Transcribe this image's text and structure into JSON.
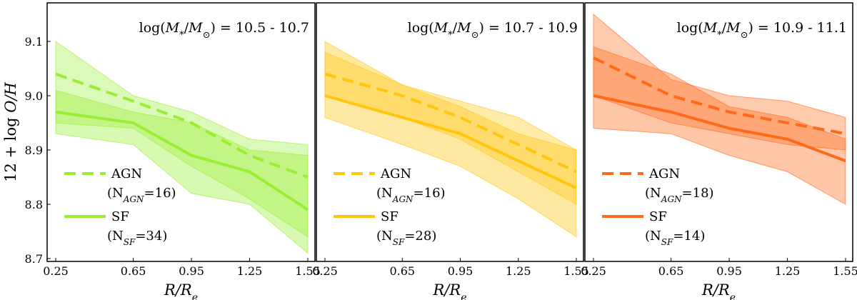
{
  "chart_data": {
    "type": "line",
    "ylabel": "12 + log O/H",
    "xlabel": "R/R_e",
    "xticks": [
      "0.25",
      "0.65",
      "0.95",
      "1.25",
      "1.55"
    ],
    "yticks": [
      "8.7",
      "8.8",
      "8.9",
      "9.0",
      "9.1"
    ],
    "xlim": [
      0.25,
      1.55
    ],
    "ylim": [
      8.7,
      9.15
    ],
    "panels": [
      {
        "title": "log(M*/M⊙) = 10.5 - 10.7",
        "color": "#99ee33",
        "x": [
          0.25,
          0.65,
          0.95,
          1.25,
          1.55
        ],
        "series": [
          {
            "name": "AGN",
            "label": "AGN",
            "count_label": "(NAGN=16)",
            "style": "dashed",
            "values": [
              9.04,
              8.99,
              8.95,
              8.89,
              8.85
            ],
            "band_low": [
              8.95,
              8.94,
              8.87,
              8.81,
              8.74
            ],
            "band_high": [
              9.1,
              9.0,
              8.97,
              8.92,
              8.91
            ]
          },
          {
            "name": "SF",
            "label": "SF",
            "count_label": "(NSF=34)",
            "style": "solid",
            "values": [
              8.97,
              8.95,
              8.89,
              8.86,
              8.79
            ],
            "band_low": [
              8.93,
              8.91,
              8.82,
              8.8,
              8.71
            ],
            "band_high": [
              9.01,
              8.97,
              8.95,
              8.9,
              8.89
            ]
          }
        ]
      },
      {
        "title": "log(M*/M⊙) = 10.7 - 10.9",
        "color": "#ffc60b",
        "x": [
          0.25,
          0.65,
          0.95,
          1.25,
          1.55
        ],
        "series": [
          {
            "name": "AGN",
            "label": "AGN",
            "count_label": "(NAGN=16)",
            "style": "dashed",
            "values": [
              9.04,
              9.0,
              8.96,
              8.91,
              8.86
            ],
            "band_low": [
              9.0,
              8.96,
              8.92,
              8.86,
              8.8
            ],
            "band_high": [
              9.08,
              9.02,
              8.99,
              8.96,
              8.9
            ]
          },
          {
            "name": "SF",
            "label": "SF",
            "count_label": "(NSF=28)",
            "style": "solid",
            "values": [
              9.0,
              8.96,
              8.93,
              8.88,
              8.83
            ],
            "band_low": [
              8.96,
              8.91,
              8.87,
              8.81,
              8.74
            ],
            "band_high": [
              9.1,
              9.02,
              8.98,
              8.93,
              8.9
            ]
          }
        ]
      },
      {
        "title": "log(M*/M⊙) = 10.9 - 11.1",
        "color": "#ff6a1a",
        "x": [
          0.25,
          0.65,
          0.95,
          1.25,
          1.55
        ],
        "series": [
          {
            "name": "AGN",
            "label": "AGN",
            "count_label": "(NAGN=18)",
            "style": "dashed",
            "values": [
              9.07,
              9.0,
              8.97,
              8.95,
              8.93
            ],
            "band_low": [
              9.0,
              8.95,
              8.93,
              8.91,
              8.9
            ],
            "band_high": [
              9.15,
              9.03,
              9.0,
              8.99,
              8.96
            ]
          },
          {
            "name": "SF",
            "label": "SF",
            "count_label": "(NSF=14)",
            "style": "solid",
            "values": [
              9.0,
              8.97,
              8.94,
              8.92,
              8.88
            ],
            "band_low": [
              8.94,
              8.93,
              8.89,
              8.86,
              8.8
            ],
            "band_high": [
              9.09,
              9.04,
              8.98,
              8.96,
              8.92
            ]
          }
        ]
      }
    ]
  }
}
